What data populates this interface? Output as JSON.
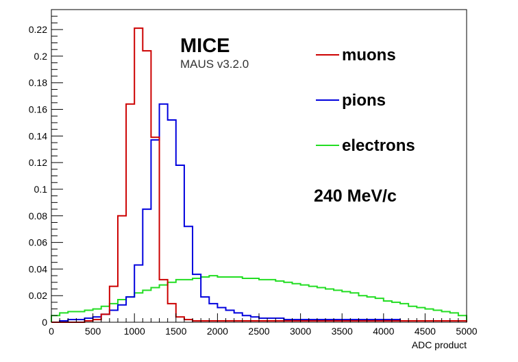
{
  "chart_data": {
    "type": "line",
    "title": "",
    "xlabel": "ADC product",
    "ylabel": "",
    "xlim": [
      0,
      5000
    ],
    "ylim": [
      0,
      0.235
    ],
    "bin_width": 100,
    "x_ticks": [
      0,
      500,
      1000,
      1500,
      2000,
      2500,
      3000,
      3500,
      4000,
      4500,
      5000
    ],
    "y_ticks": [
      0,
      0.02,
      0.04,
      0.06,
      0.08,
      0.1,
      0.12,
      0.14,
      0.16,
      0.18,
      0.2,
      0.22
    ],
    "x_tick_labels": [
      "0",
      "500",
      "1000",
      "1500",
      "2000",
      "2500",
      "3000",
      "3500",
      "4000",
      "4500",
      "5000"
    ],
    "y_tick_labels": [
      "0",
      "0.02",
      "0.04",
      "0.06",
      "0.08",
      "0.1",
      "0.12",
      "0.14",
      "0.16",
      "0.18",
      "0.2",
      "0.22"
    ],
    "grid": false,
    "legend_position": "top-right",
    "series": [
      {
        "name": "muons",
        "color": "#cc0000",
        "values": [
          0,
          0,
          0,
          0,
          0.001,
          0.002,
          0.006,
          0.027,
          0.08,
          0.164,
          0.221,
          0.204,
          0.139,
          0.032,
          0.014,
          0.004,
          0.002,
          0.001,
          0.001,
          0.001,
          0.001,
          0.001,
          0.001,
          0.001,
          0.001,
          0.001,
          0.001,
          0.001,
          0.001,
          0.001,
          0.001,
          0.001,
          0.001,
          0.001,
          0.001,
          0.001,
          0.001,
          0.001,
          0.001,
          0.001,
          0.001,
          0.001,
          0.001,
          0.001,
          0.001,
          0.001,
          0.001,
          0.001,
          0.001,
          0.001
        ]
      },
      {
        "name": "pions",
        "color": "#0000dd",
        "values": [
          0,
          0.001,
          0.002,
          0.002,
          0.003,
          0.004,
          0.006,
          0.009,
          0.013,
          0.019,
          0.043,
          0.085,
          0.137,
          0.164,
          0.152,
          0.118,
          0.072,
          0.036,
          0.019,
          0.014,
          0.011,
          0.009,
          0.007,
          0.005,
          0.004,
          0.003,
          0.003,
          0.003,
          0.002,
          0.002,
          0.002,
          0.002,
          0.002,
          0.002,
          0.002,
          0.002,
          0.002,
          0.002,
          0.002,
          0.002,
          0.002,
          0.002,
          0.001,
          0.001,
          0.001,
          0.001,
          0.001,
          0.001,
          0.001,
          0.001
        ]
      },
      {
        "name": "electrons",
        "color": "#22dd22",
        "values": [
          0.005,
          0.007,
          0.008,
          0.008,
          0.009,
          0.01,
          0.012,
          0.014,
          0.017,
          0.019,
          0.022,
          0.024,
          0.026,
          0.028,
          0.03,
          0.032,
          0.032,
          0.033,
          0.034,
          0.035,
          0.034,
          0.034,
          0.034,
          0.033,
          0.033,
          0.032,
          0.032,
          0.031,
          0.03,
          0.029,
          0.028,
          0.027,
          0.026,
          0.025,
          0.024,
          0.023,
          0.022,
          0.02,
          0.019,
          0.018,
          0.016,
          0.015,
          0.014,
          0.012,
          0.011,
          0.01,
          0.009,
          0.008,
          0.007,
          0.005
        ]
      }
    ],
    "annotations": [
      "MICE",
      "MAUS v3.2.0",
      "240 MeV/c"
    ]
  },
  "branding": {
    "experiment": "MICE",
    "software": "MAUS v3.2.0"
  },
  "momentum_label": "240 MeV/c"
}
